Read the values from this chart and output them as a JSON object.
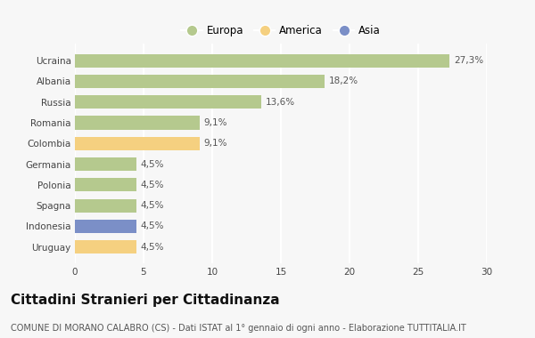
{
  "categories": [
    "Ucraina",
    "Albania",
    "Russia",
    "Romania",
    "Colombia",
    "Germania",
    "Polonia",
    "Spagna",
    "Indonesia",
    "Uruguay"
  ],
  "values": [
    27.3,
    18.2,
    13.6,
    9.1,
    9.1,
    4.5,
    4.5,
    4.5,
    4.5,
    4.5
  ],
  "labels": [
    "27,3%",
    "18,2%",
    "13,6%",
    "9,1%",
    "9,1%",
    "4,5%",
    "4,5%",
    "4,5%",
    "4,5%",
    "4,5%"
  ],
  "colors": [
    "#b5c98e",
    "#b5c98e",
    "#b5c98e",
    "#b5c98e",
    "#f5d080",
    "#b5c98e",
    "#b5c98e",
    "#b5c98e",
    "#7b8fc7",
    "#f5d080"
  ],
  "legend_labels": [
    "Europa",
    "America",
    "Asia"
  ],
  "legend_colors": [
    "#b5c98e",
    "#f5d080",
    "#7b8fc7"
  ],
  "xlim": [
    0,
    30
  ],
  "xticks": [
    0,
    5,
    10,
    15,
    20,
    25,
    30
  ],
  "title": "Cittadini Stranieri per Cittadinanza",
  "subtitle": "COMUNE DI MORANO CALABRO (CS) - Dati ISTAT al 1° gennaio di ogni anno - Elaborazione TUTTITALIA.IT",
  "bg_color": "#f7f7f7",
  "grid_color": "#ffffff",
  "title_fontsize": 11,
  "subtitle_fontsize": 7,
  "label_fontsize": 7.5,
  "tick_fontsize": 7.5,
  "legend_fontsize": 8.5,
  "bar_height": 0.65
}
